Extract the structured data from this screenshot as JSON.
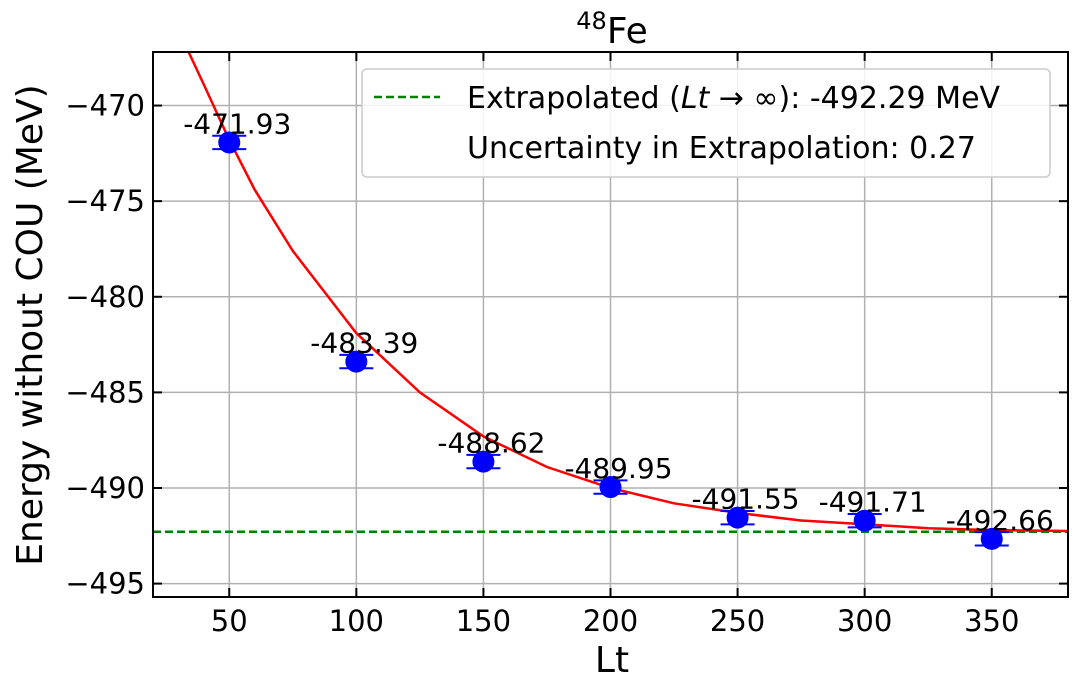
{
  "chart_data": {
    "type": "scatter",
    "title_base": "Fe",
    "title_superscript": "48",
    "xlabel": "Lt",
    "ylabel": "Energy without COU (MeV)",
    "xlim": [
      20,
      380
    ],
    "ylim": [
      -495.7,
      -467.2
    ],
    "xticks": [
      50,
      100,
      150,
      200,
      250,
      300,
      350
    ],
    "yticks": [
      -470,
      -475,
      -480,
      -485,
      -490,
      -495
    ],
    "grid": true,
    "legend_position": "top-right",
    "points": {
      "name": "",
      "color": "#0000ff",
      "x": [
        50,
        100,
        150,
        200,
        250,
        300,
        350
      ],
      "y": [
        -471.93,
        -483.39,
        -488.62,
        -489.95,
        -491.55,
        -491.71,
        -492.66
      ],
      "yerr": [
        0.35,
        0.35,
        0.35,
        0.35,
        0.35,
        0.35,
        0.35
      ],
      "labels": [
        "-471.93",
        "-483.39",
        "-488.62",
        "-489.95",
        "-491.55",
        "-491.71",
        "-492.66"
      ]
    },
    "fit_curve": {
      "color": "#ff0000",
      "x": [
        34,
        40,
        50,
        60,
        75,
        100,
        125,
        150,
        175,
        200,
        225,
        250,
        275,
        300,
        325,
        350,
        380
      ],
      "y": [
        -467.2,
        -468.9,
        -471.8,
        -474.4,
        -477.6,
        -481.9,
        -485.0,
        -487.3,
        -488.9,
        -490.0,
        -490.8,
        -491.3,
        -491.7,
        -491.9,
        -492.1,
        -492.2,
        -492.25
      ]
    },
    "extrapolated_line": {
      "color": "#008000",
      "y": -492.29
    },
    "legend": {
      "entry1_prefix": "Extrapolated (",
      "entry1_math": "Lt",
      "entry1_arrow": " → ∞",
      "entry1_suffix": "): -492.29 MeV",
      "entry2": "Uncertainty in Extrapolation: 0.27"
    }
  }
}
